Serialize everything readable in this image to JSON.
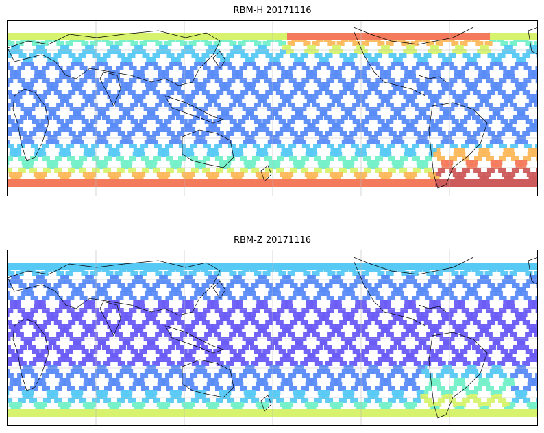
{
  "panels": [
    {
      "title": "RBM-H 20171116",
      "variable": "RBM-H",
      "date": "20171116"
    },
    {
      "title": "RBM-Z 20171116",
      "variable": "RBM-Z",
      "date": "20171116"
    }
  ],
  "colormap": [
    "#6a5cf5",
    "#5a8cf8",
    "#57c9f5",
    "#74f0c8",
    "#d7f36e",
    "#fbb85b",
    "#f47a5c",
    "#cd5b5b"
  ],
  "map": {
    "projection": "equirectangular",
    "central_longitude": 0,
    "gridlines": true,
    "coastlines": true
  }
}
